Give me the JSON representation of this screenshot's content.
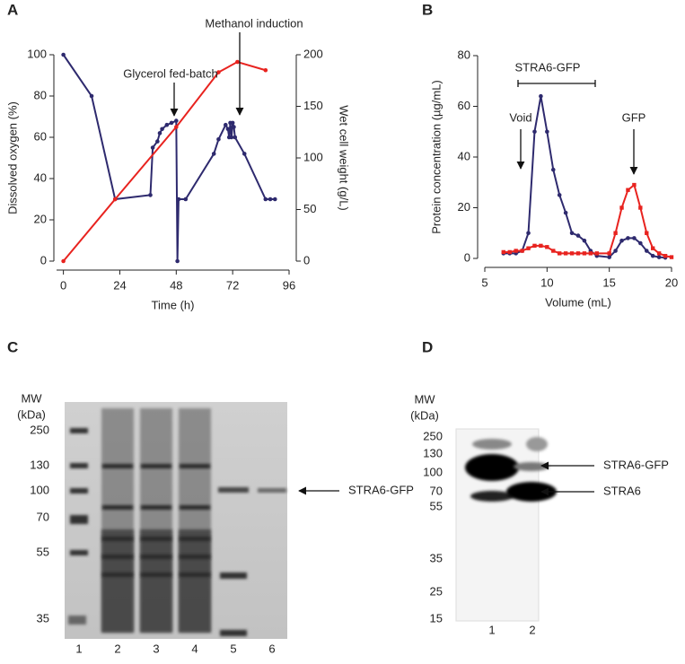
{
  "chart_data": [
    {
      "panel": "A",
      "type": "line",
      "xlabel": "Time (h)",
      "ylabel": "Dissolved oxygen (%)",
      "y2label": "Wet cell weight (g/L)",
      "xlim": [
        -1,
        96
      ],
      "xticks": [
        0,
        24,
        48,
        72,
        96
      ],
      "ylim": [
        0,
        100
      ],
      "yticks": [
        0,
        20,
        40,
        60,
        80,
        100
      ],
      "y2lim": [
        0,
        200
      ],
      "y2ticks": [
        0,
        50,
        100,
        150,
        200
      ],
      "series": [
        {
          "color": "#2e2a6e",
          "marker": "circle",
          "x": [
            0,
            12,
            22,
            37,
            38,
            40,
            41,
            42,
            44,
            46,
            48,
            48.5,
            49,
            52,
            64,
            66,
            69,
            70,
            70.5,
            71,
            71.5,
            72,
            72.5,
            73,
            77,
            86,
            88,
            90
          ],
          "values": [
            100,
            80,
            30,
            32,
            55,
            58,
            62,
            64,
            66,
            67,
            68,
            0,
            30,
            30,
            52,
            59,
            66,
            64,
            60,
            67,
            60,
            67,
            65,
            60,
            52,
            30,
            30,
            30
          ]
        },
        {
          "color": "#e8231f",
          "marker": "circle",
          "axis": "y2",
          "x": [
            0,
            22,
            48,
            66,
            74,
            86
          ],
          "values": [
            0,
            60,
            130,
            183,
            193,
            185
          ]
        }
      ],
      "annotations": [
        "Glycerol fed-batch",
        "Methanol induction"
      ]
    },
    {
      "panel": "B",
      "type": "line",
      "xlabel": "Volume (mL)",
      "ylabel": "Protein concentration (µg/mL)",
      "xlim": [
        5,
        20
      ],
      "xticks": [
        5,
        10,
        15,
        20
      ],
      "ylim": [
        0,
        80
      ],
      "yticks": [
        0,
        20,
        40,
        60,
        80
      ],
      "series": [
        {
          "color": "#2e2a6e",
          "marker": "circle",
          "x": [
            6.5,
            7,
            7.5,
            8,
            8.5,
            9,
            9.5,
            10,
            10.5,
            11,
            11.5,
            12,
            12.5,
            13,
            13.5,
            14,
            15,
            15.5,
            16,
            16.5,
            17,
            17.5,
            18,
            18.5,
            19,
            19.5
          ],
          "values": [
            2,
            2,
            2,
            3,
            10,
            50,
            64,
            50,
            35,
            25,
            18,
            10,
            9,
            7,
            3,
            1,
            0.5,
            3,
            7,
            8,
            8,
            6,
            3,
            1,
            0.5,
            0.3
          ]
        },
        {
          "color": "#e8231f",
          "marker": "square",
          "x": [
            6.5,
            7,
            7.5,
            8,
            8.5,
            9,
            9.5,
            10,
            10.5,
            11,
            11.5,
            12,
            12.5,
            13,
            13.5,
            14,
            15,
            15.5,
            16,
            16.5,
            17,
            17.5,
            18,
            18.5,
            19,
            19.5,
            20
          ],
          "values": [
            2.5,
            2.5,
            3,
            3,
            4,
            5,
            5,
            4.5,
            3,
            2,
            2,
            2,
            2,
            2,
            2,
            2,
            2,
            10,
            20,
            27,
            29,
            20,
            10,
            4,
            2,
            1,
            0.5
          ]
        }
      ],
      "annotations": [
        "STRA6-GFP",
        "Void",
        "GFP"
      ]
    }
  ],
  "gels": [
    {
      "panel": "C",
      "mw_title": [
        "MW",
        "(kDa)"
      ],
      "markers": [
        250,
        130,
        100,
        70,
        55,
        35
      ],
      "lanes": [
        1,
        2,
        3,
        4,
        5,
        6
      ],
      "annotations": [
        "STRA6-GFP"
      ]
    },
    {
      "panel": "D",
      "mw_title": [
        "MW",
        "(kDa)"
      ],
      "markers": [
        250,
        130,
        100,
        70,
        55,
        35,
        25,
        15
      ],
      "lanes": [
        1,
        2
      ],
      "annotations": [
        "STRA6-GFP",
        "STRA6"
      ]
    }
  ]
}
